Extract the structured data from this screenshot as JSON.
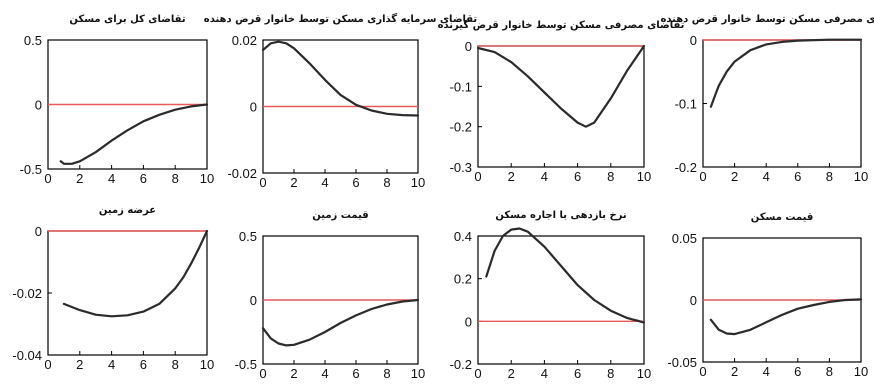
{
  "chart_data": [
    {
      "type": "line",
      "title": "تقاضای کل برای مسکن",
      "xlim": [
        0,
        10
      ],
      "ylim": [
        -0.5,
        0.5
      ],
      "xticks": [
        "0",
        "2",
        "4",
        "6",
        "8",
        "10"
      ],
      "yticks": [
        "0.5",
        "0",
        "-0.5"
      ],
      "ytick_values": [
        0.5,
        0,
        -0.5
      ],
      "zero_line": 0,
      "series": [
        {
          "x": [
            0.8,
            1,
            1.5,
            2,
            3,
            4,
            5,
            6,
            7,
            8,
            9,
            10
          ],
          "y": [
            -0.44,
            -0.46,
            -0.46,
            -0.44,
            -0.37,
            -0.28,
            -0.2,
            -0.13,
            -0.08,
            -0.04,
            -0.015,
            0
          ]
        }
      ]
    },
    {
      "type": "line",
      "title": "تقاضای سرمایه گذاری مسکن توسط خانوار قرض دهنده",
      "xlim": [
        0,
        10
      ],
      "ylim": [
        -0.02,
        0.02
      ],
      "xticks": [
        "0",
        "2",
        "4",
        "6",
        "8",
        "10"
      ],
      "yticks": [
        "0.02",
        "0",
        "-0.02"
      ],
      "ytick_values": [
        0.02,
        0,
        -0.02
      ],
      "zero_line": 0,
      "series": [
        {
          "x": [
            0,
            0.5,
            1,
            1.5,
            2,
            3,
            4,
            5,
            6,
            7,
            8,
            9,
            10
          ],
          "y": [
            0.017,
            0.019,
            0.0195,
            0.019,
            0.0175,
            0.013,
            0.008,
            0.0035,
            0.0005,
            -0.0012,
            -0.0022,
            -0.0026,
            -0.0027
          ]
        }
      ]
    },
    {
      "type": "line",
      "title": "تقاضای مصرفی مسکن توسط خانوار قرض گیرنده",
      "xlim": [
        0,
        10
      ],
      "ylim": [
        -0.3,
        0
      ],
      "xticks": [
        "0",
        "2",
        "4",
        "6",
        "8",
        "10"
      ],
      "yticks": [
        "0",
        "-0.1",
        "-0.2",
        "-0.3"
      ],
      "ytick_values": [
        0,
        -0.1,
        -0.2,
        -0.3
      ],
      "zero_line": 0,
      "series": [
        {
          "x": [
            0,
            1,
            2,
            3,
            4,
            5,
            6,
            6.5,
            7,
            8,
            9,
            10
          ],
          "y": [
            -0.005,
            -0.015,
            -0.04,
            -0.075,
            -0.115,
            -0.155,
            -0.19,
            -0.2,
            -0.19,
            -0.13,
            -0.06,
            0
          ]
        }
      ]
    },
    {
      "type": "line",
      "title": "تقاضای مصرفی مسکن توسط خانوار قرض دهنده",
      "xlim": [
        0,
        10
      ],
      "ylim": [
        -0.2,
        0
      ],
      "xticks": [
        "0",
        "2",
        "4",
        "6",
        "8",
        "10"
      ],
      "yticks": [
        "0",
        "-0.1",
        "-0.2"
      ],
      "ytick_values": [
        0,
        -0.1,
        -0.2
      ],
      "zero_line": 0,
      "series": [
        {
          "x": [
            0.5,
            0.8,
            1,
            1.5,
            2,
            3,
            4,
            5,
            6,
            8,
            10
          ],
          "y": [
            -0.105,
            -0.085,
            -0.072,
            -0.05,
            -0.034,
            -0.016,
            -0.007,
            -0.003,
            -0.001,
            0.0005,
            0.0005
          ]
        }
      ]
    },
    {
      "type": "line",
      "title": "عرضه زمین",
      "xlim": [
        0,
        10
      ],
      "ylim": [
        -0.04,
        0
      ],
      "xticks": [
        "0",
        "2",
        "4",
        "6",
        "8",
        "10"
      ],
      "yticks": [
        "0",
        "-0.02",
        "-0.04"
      ],
      "ytick_values": [
        0,
        -0.02,
        -0.04
      ],
      "zero_line": 0,
      "series": [
        {
          "x": [
            1,
            2,
            3,
            4,
            5,
            6,
            7,
            8,
            8.5,
            9,
            9.5,
            10
          ],
          "y": [
            -0.0235,
            -0.0255,
            -0.027,
            -0.0275,
            -0.0272,
            -0.026,
            -0.0235,
            -0.0185,
            -0.015,
            -0.0105,
            -0.0055,
            0
          ]
        }
      ]
    },
    {
      "type": "line",
      "title": "قیمت زمین",
      "xlim": [
        0,
        10
      ],
      "ylim": [
        -0.5,
        0.5
      ],
      "xticks": [
        "0",
        "2",
        "4",
        "6",
        "8",
        "10"
      ],
      "yticks": [
        "0.5",
        "0",
        "-0.5"
      ],
      "ytick_values": [
        0.5,
        0,
        -0.5
      ],
      "zero_line": 0,
      "series": [
        {
          "x": [
            0,
            0.5,
            1,
            1.5,
            2,
            3,
            4,
            5,
            6,
            7,
            8,
            9,
            10
          ],
          "y": [
            -0.22,
            -0.3,
            -0.34,
            -0.355,
            -0.35,
            -0.31,
            -0.25,
            -0.18,
            -0.12,
            -0.07,
            -0.035,
            -0.012,
            0
          ]
        }
      ]
    },
    {
      "type": "line",
      "title": "نرخ بازدهی با اجاره مسکن",
      "xlim": [
        0,
        10
      ],
      "ylim": [
        -0.2,
        0.4
      ],
      "xticks": [
        "0",
        "2",
        "4",
        "6",
        "8",
        "10"
      ],
      "yticks": [
        "0.4",
        "0.2",
        "0",
        "-0.2"
      ],
      "ytick_values": [
        0.4,
        0.2,
        0,
        -0.2
      ],
      "zero_line": 0,
      "series": [
        {
          "x": [
            0.5,
            1,
            1.5,
            2,
            2.5,
            3,
            4,
            5,
            6,
            7,
            8,
            9,
            10
          ],
          "y": [
            0.21,
            0.33,
            0.4,
            0.43,
            0.435,
            0.42,
            0.35,
            0.26,
            0.17,
            0.1,
            0.05,
            0.015,
            -0.005
          ]
        }
      ]
    },
    {
      "type": "line",
      "title": "قیمت مسکن",
      "xlim": [
        0,
        10
      ],
      "ylim": [
        -0.05,
        0.05
      ],
      "xticks": [
        "0",
        "2",
        "4",
        "6",
        "8",
        "10"
      ],
      "yticks": [
        "0.05",
        "0",
        "-0.05"
      ],
      "ytick_values": [
        0.05,
        0,
        -0.05
      ],
      "zero_line": 0,
      "series": [
        {
          "x": [
            0.5,
            1,
            1.5,
            2,
            3,
            4,
            5,
            6,
            7,
            8,
            9,
            10
          ],
          "y": [
            -0.016,
            -0.024,
            -0.027,
            -0.0275,
            -0.024,
            -0.018,
            -0.012,
            -0.007,
            -0.004,
            -0.0015,
            0,
            0.0005
          ]
        }
      ]
    }
  ],
  "colors": {
    "response_line": "#2b2b2b",
    "zero_line": "#e8595a",
    "axes": "#000000"
  }
}
